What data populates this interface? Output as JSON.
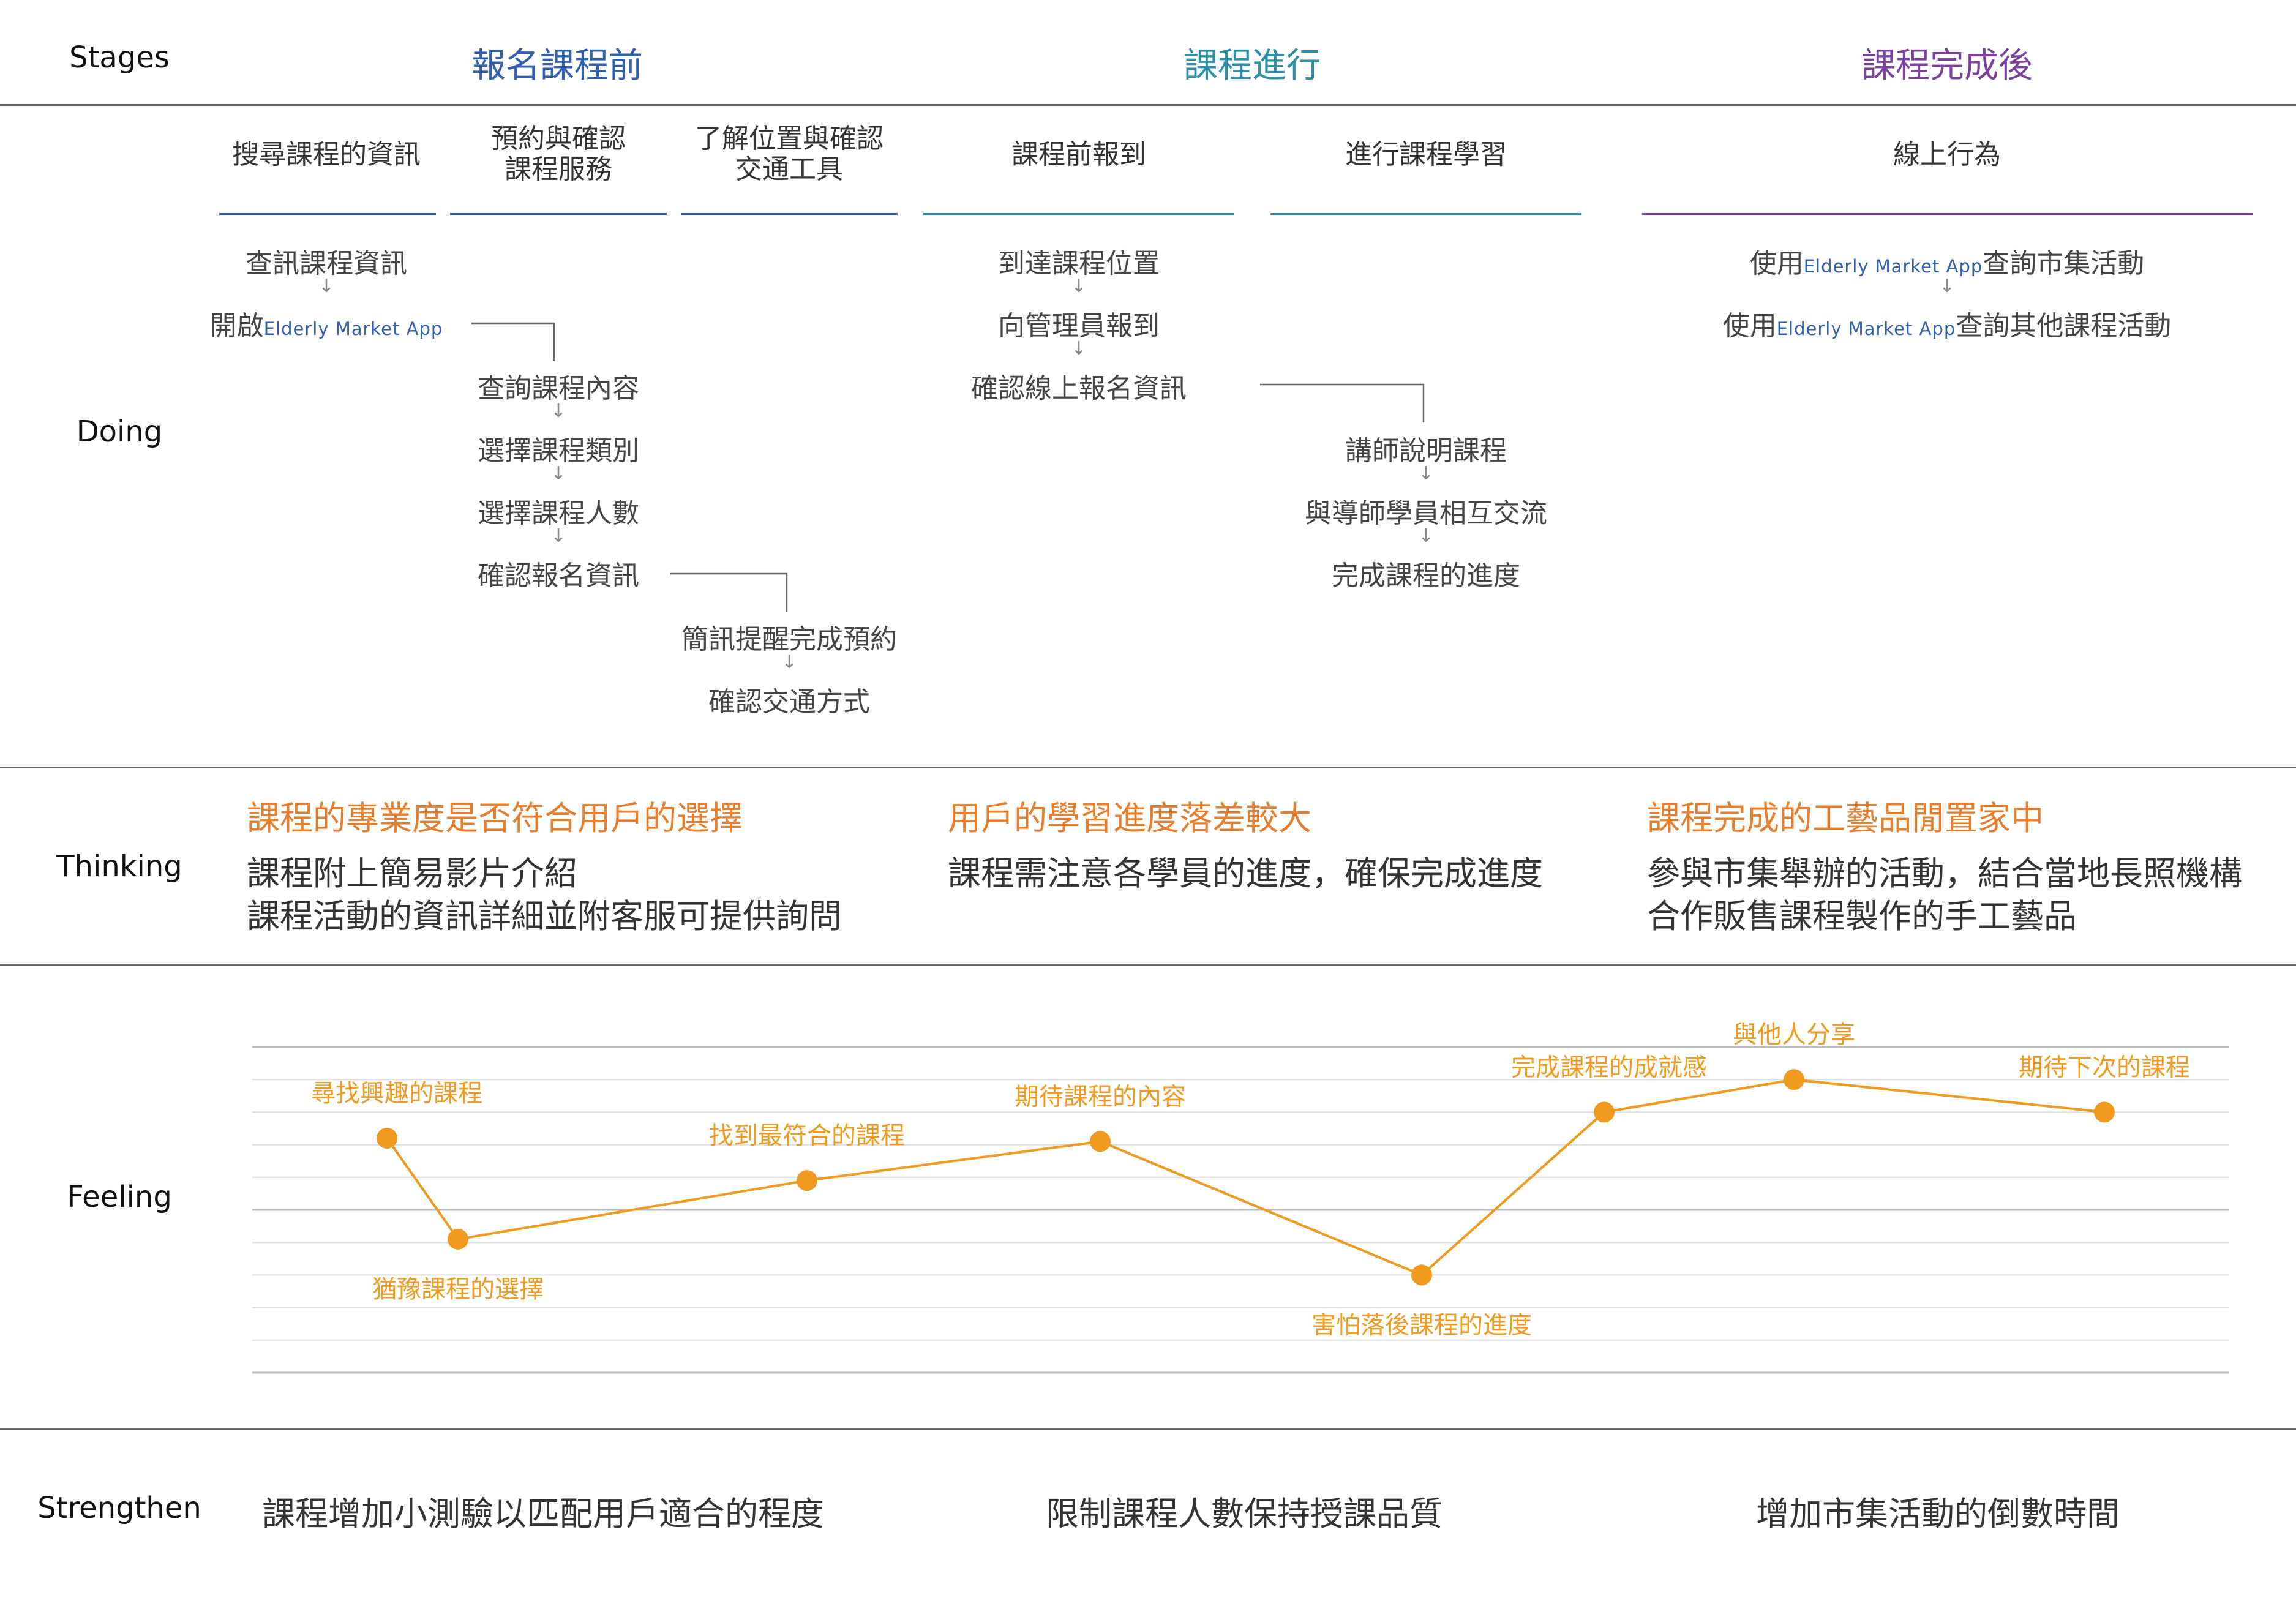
{
  "rows": {
    "stages": "Stages",
    "doing": "Doing",
    "thinking": "Thinking",
    "feeling": "Feeling",
    "strengthen": "Strengthen"
  },
  "stages": [
    {
      "label": "報名課程前",
      "color": "#2f5fb0"
    },
    {
      "label": "課程進行",
      "color": "#2a8fa8"
    },
    {
      "label": "課程完成後",
      "color": "#7b3fa0"
    }
  ],
  "substages": [
    "搜尋課程的資訊",
    "預約與確認\n課程服務",
    "了解位置與確認\n交通工具",
    "課程前報到",
    "進行課程學習",
    "線上行為"
  ],
  "doing": {
    "search": [
      "查訊課程資訊",
      "開啟"
    ],
    "reserve": [
      "查詢課程內容",
      "選擇課程類別",
      "選擇課程人數",
      "確認報名資訊"
    ],
    "transport": [
      "簡訊提醒完成預約",
      "確認交通方式"
    ],
    "checkin": [
      "到達課程位置",
      "向管理員報到",
      "確認線上報名資訊"
    ],
    "learning": [
      "講師說明課程",
      "與導師學員相互交流",
      "完成課程的進度"
    ],
    "online_prefix": "使用",
    "online_suffix": [
      "查詢市集活動",
      "查詢其他課程活動"
    ],
    "app_name": "Elderly Market App",
    "arrow": "↓"
  },
  "thinking": [
    {
      "heading": "課程的專業度是否符合用戶的選擇",
      "body": "課程附上簡易影片介紹\n課程活動的資訊詳細並附客服可提供詢問"
    },
    {
      "heading": "用戶的學習進度落差較大",
      "body": "課程需注意各學員的進度，確保完成進度"
    },
    {
      "heading": "課程完成的工藝品閒置家中",
      "body": "參與市集舉辦的活動，結合當地長照機構\n合作販售課程製作的手工藝品"
    }
  ],
  "chart_data": {
    "type": "line",
    "ylim": [
      0,
      10
    ],
    "grid": true,
    "color": "#f09a1f",
    "points": [
      {
        "label": "尋找興趣的課程",
        "value": 7.2
      },
      {
        "label": "猶豫課程的選擇",
        "value": 4.1
      },
      {
        "label": "找到最符合的課程",
        "value": 5.9
      },
      {
        "label": "期待課程的內容",
        "value": 7.1
      },
      {
        "label": "害怕落後課程的進度",
        "value": 3.0
      },
      {
        "label": "完成課程的成就感",
        "value": 8.0
      },
      {
        "label": "與他人分享",
        "value": 9.0
      },
      {
        "label": "期待下次的課程",
        "value": 8.0
      }
    ]
  },
  "strengthen": [
    "課程增加小測驗以匹配用戶適合的程度",
    "限制課程人數保持授課品質",
    "增加市集活動的倒數時間"
  ]
}
